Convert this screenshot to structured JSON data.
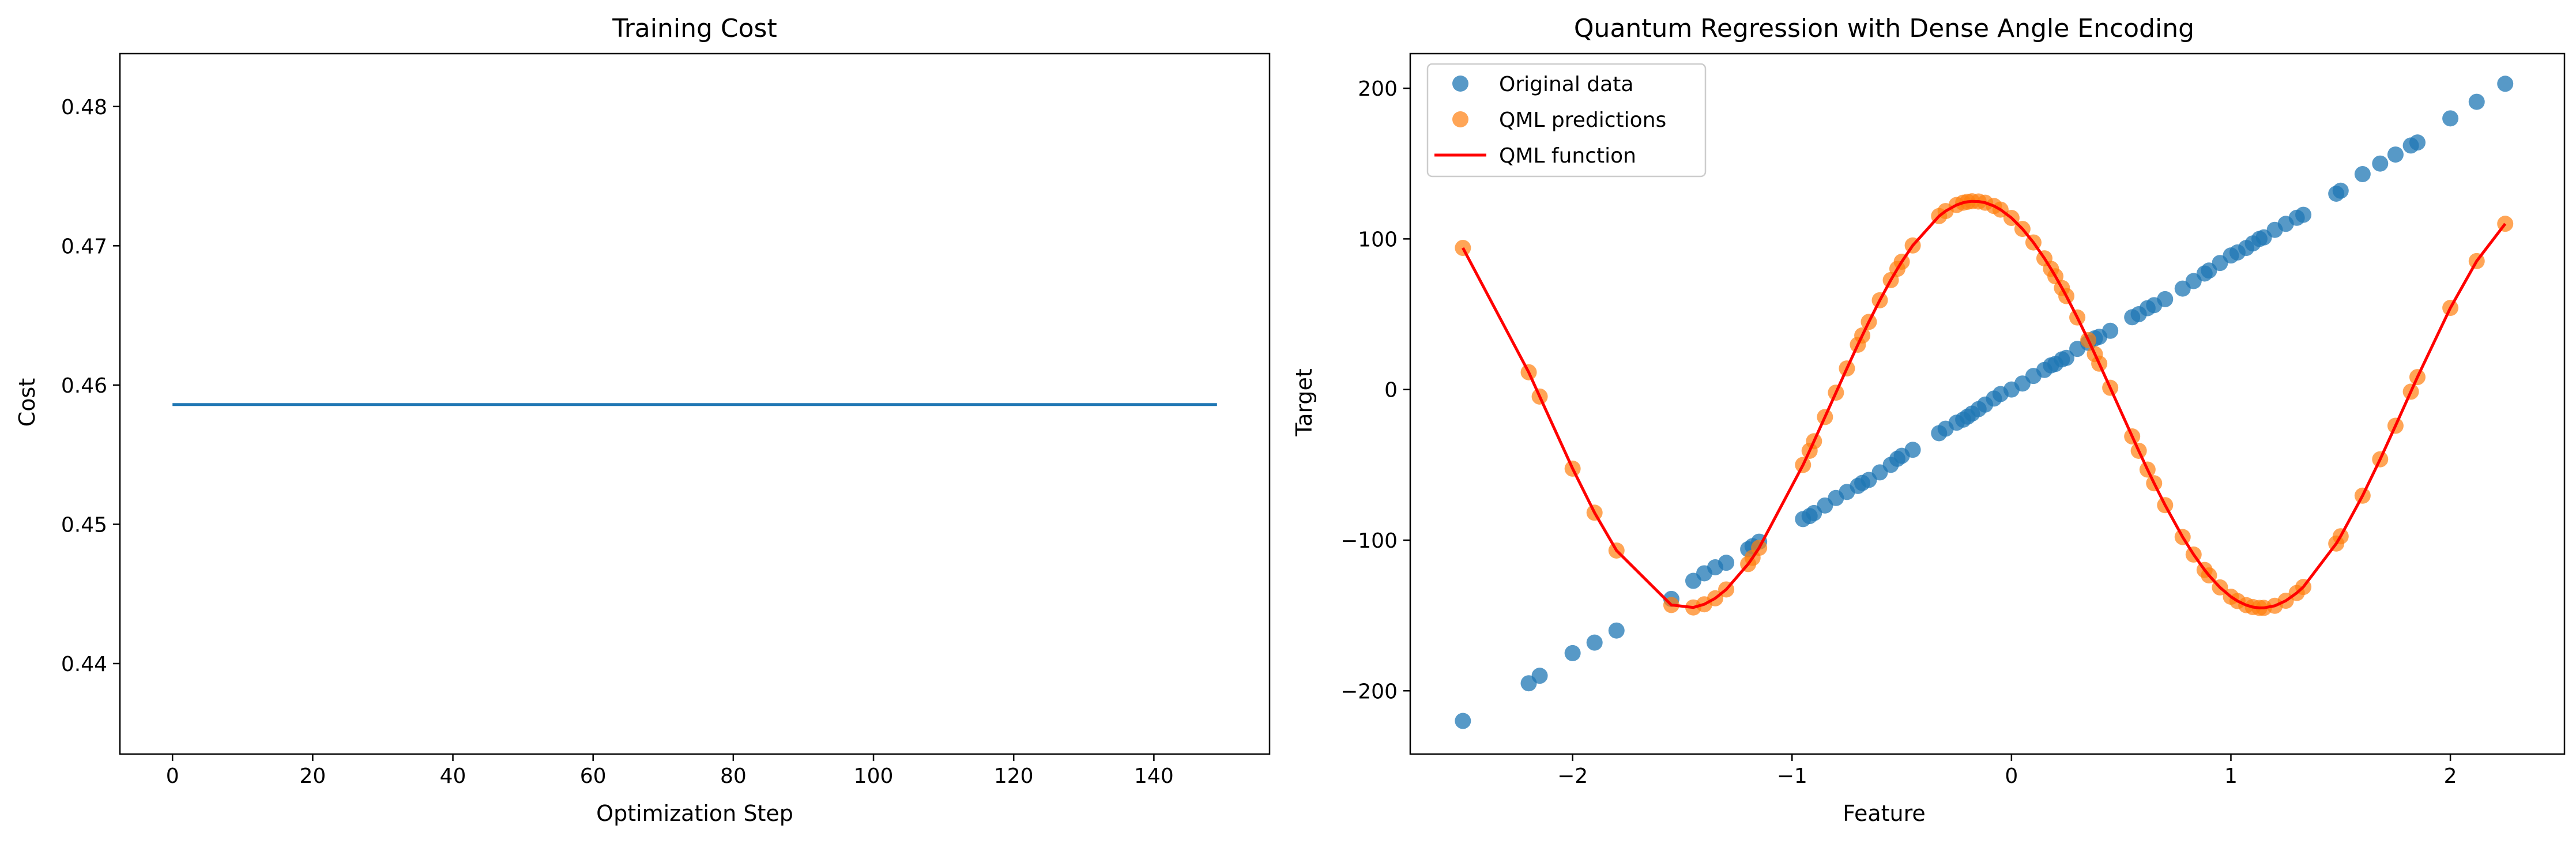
{
  "chart_data": [
    {
      "type": "line",
      "title": "Training Cost",
      "xlabel": "Optimization Step",
      "ylabel": "Cost",
      "xlim": [
        -7.5,
        156.5
      ],
      "ylim": [
        0.4335,
        0.4838
      ],
      "xticks": [
        0,
        20,
        40,
        60,
        80,
        100,
        120,
        140
      ],
      "xtick_labels": [
        "0",
        "20",
        "40",
        "60",
        "80",
        "100",
        "120",
        "140"
      ],
      "yticks": [
        0.44,
        0.45,
        0.46,
        0.47,
        0.48
      ],
      "ytick_labels": [
        "0.44",
        "0.45",
        "0.46",
        "0.47",
        "0.48"
      ],
      "grid": false,
      "series": [
        {
          "x": [
            0,
            149
          ],
          "y": [
            0.4586,
            0.4586
          ],
          "color": "#1f77b4"
        }
      ]
    },
    {
      "type": "scatter",
      "title": "Quantum Regression with Dense Angle Encoding",
      "xlabel": "Feature",
      "ylabel": "Target",
      "xlim": [
        -2.74,
        2.52
      ],
      "ylim": [
        -242,
        223
      ],
      "xticks": [
        -2,
        -1,
        0,
        1,
        2
      ],
      "xtick_labels": [
        "−2",
        "−1",
        "0",
        "1",
        "2"
      ],
      "yticks": [
        -200,
        -100,
        0,
        100,
        200
      ],
      "ytick_labels": [
        "−200",
        "−100",
        "0",
        "100",
        "200"
      ],
      "grid": false,
      "legend_position": "top-left",
      "legend": [
        {
          "label": "Original data",
          "kind": "marker",
          "color": "#1f77b4"
        },
        {
          "label": "QML predictions",
          "kind": "marker",
          "color": "#ff7f0e"
        },
        {
          "label": "QML function",
          "kind": "line",
          "color": "#ff0000"
        }
      ],
      "function_params": {
        "amplitude": 135,
        "frequency": 2.4,
        "x_shift": -0.17,
        "offset": -10
      },
      "series": [
        {
          "name": "Original data",
          "kind": "scatter",
          "color": "#1f77b4",
          "alpha": 0.75,
          "x": [
            -2.5,
            -2.2,
            -2.15,
            -2.0,
            -1.9,
            -1.8,
            -1.55,
            -1.45,
            -1.4,
            -1.35,
            -1.3,
            -1.2,
            -1.18,
            -1.15,
            -0.95,
            -0.92,
            -0.9,
            -0.85,
            -0.8,
            -0.75,
            -0.7,
            -0.68,
            -0.65,
            -0.6,
            -0.55,
            -0.52,
            -0.5,
            -0.45,
            -0.33,
            -0.3,
            -0.25,
            -0.22,
            -0.2,
            -0.18,
            -0.15,
            -0.12,
            -0.08,
            -0.05,
            0.0,
            0.05,
            0.1,
            0.15,
            0.18,
            0.2,
            0.23,
            0.25,
            0.3,
            0.35,
            0.38,
            0.4,
            0.45,
            0.55,
            0.58,
            0.62,
            0.65,
            0.7,
            0.78,
            0.83,
            0.88,
            0.9,
            0.95,
            1.0,
            1.03,
            1.07,
            1.1,
            1.13,
            1.15,
            1.2,
            1.25,
            1.3,
            1.33,
            1.48,
            1.5,
            1.6,
            1.68,
            1.75,
            1.82,
            1.85,
            2.0,
            2.12,
            2.25
          ],
          "y": [
            -220,
            -195,
            -190,
            -175,
            -168,
            -160,
            -139,
            -127,
            -122,
            -118,
            -115,
            -106,
            -104,
            -101,
            -86,
            -84,
            -82,
            -77,
            -72,
            -68,
            -64,
            -62,
            -60,
            -55,
            -50,
            -46,
            -44,
            -40,
            -29,
            -26,
            -22,
            -20,
            -18,
            -16,
            -13,
            -10,
            -6,
            -3,
            0,
            4,
            9,
            13,
            16,
            17,
            20,
            21,
            27,
            31,
            34,
            35,
            39,
            48,
            50,
            54,
            56,
            60,
            67,
            72,
            77,
            79,
            84,
            89,
            91,
            94,
            97,
            100,
            101,
            106,
            110,
            114,
            116,
            130,
            132,
            143,
            150,
            156,
            162,
            164,
            180,
            191,
            203
          ]
        },
        {
          "name": "QML predictions",
          "kind": "scatter",
          "color": "#ff7f0e",
          "alpha": 0.7,
          "x": [
            -2.5,
            -2.2,
            -2.15,
            -2.0,
            -1.9,
            -1.8,
            -1.55,
            -1.45,
            -1.4,
            -1.35,
            -1.3,
            -1.2,
            -1.18,
            -1.15,
            -0.95,
            -0.92,
            -0.9,
            -0.85,
            -0.8,
            -0.75,
            -0.7,
            -0.68,
            -0.65,
            -0.6,
            -0.55,
            -0.52,
            -0.5,
            -0.45,
            -0.33,
            -0.3,
            -0.25,
            -0.22,
            -0.2,
            -0.18,
            -0.15,
            -0.12,
            -0.08,
            -0.05,
            0.0,
            0.05,
            0.1,
            0.15,
            0.18,
            0.2,
            0.23,
            0.25,
            0.3,
            0.35,
            0.38,
            0.4,
            0.45,
            0.55,
            0.58,
            0.62,
            0.65,
            0.7,
            0.78,
            0.83,
            0.88,
            0.9,
            0.95,
            1.0,
            1.03,
            1.07,
            1.1,
            1.13,
            1.15,
            1.2,
            1.25,
            1.3,
            1.33,
            1.48,
            1.5,
            1.6,
            1.68,
            1.75,
            1.82,
            1.85,
            2.0,
            2.12,
            2.25
          ]
        },
        {
          "name": "QML function",
          "kind": "line",
          "color": "#ff0000"
        }
      ]
    }
  ]
}
